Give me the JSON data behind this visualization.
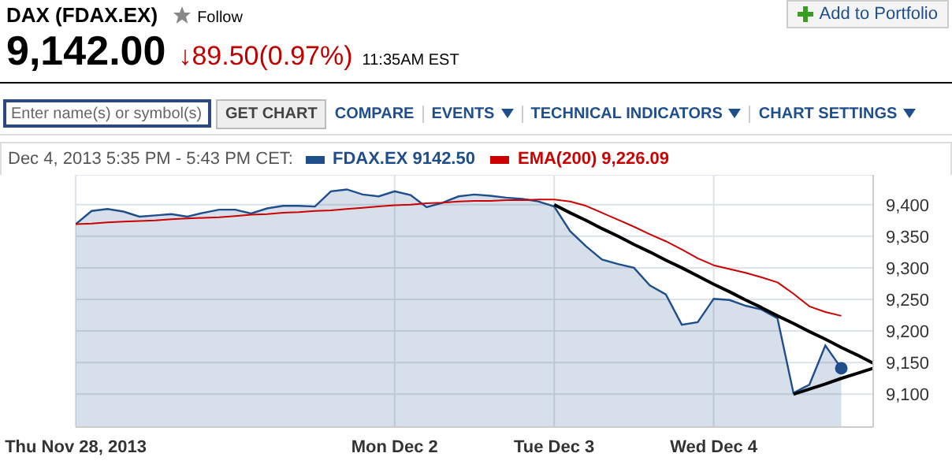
{
  "chart_data": {
    "type": "area",
    "title": "DAX (FDAX.EX)",
    "subtitle": "9,142.00",
    "annotations": [
      "Follow",
      "↓89.50(0.97%)",
      "11:35AM EST",
      "Add to Portfolio",
      "Enter name(s) or symbol(s)",
      "GET CHART",
      "COMPARE",
      "EVENTS",
      "TECHNICAL INDICATORS",
      "CHART SETTINGS"
    ],
    "legend_title": "Dec 4, 2013 5:35 PM - 5:43 PM CET:",
    "legend": "top left",
    "grid": true,
    "categories": [
      "Thu Nov 28, 2013",
      null,
      null,
      null,
      null,
      null,
      null,
      null,
      null,
      null,
      null,
      null,
      null,
      null,
      null,
      null,
      null,
      null,
      null,
      null,
      "Mon Dec 2",
      null,
      null,
      null,
      null,
      null,
      null,
      null,
      null,
      null,
      "Tue Dec 3",
      null,
      null,
      null,
      null,
      null,
      null,
      null,
      null,
      null,
      "Wed Dec 4",
      null,
      null,
      null,
      null,
      null,
      null,
      null,
      null,
      null,
      null
    ],
    "ylim": [
      9048,
      9447
    ],
    "yticks": [
      {
        "value": 9100,
        "label": "9,100"
      },
      {
        "value": 9150,
        "label": "9,150"
      },
      {
        "value": 9200,
        "label": "9,200"
      },
      {
        "value": 9250,
        "label": "9,250"
      },
      {
        "value": 9300,
        "label": "9,300"
      },
      {
        "value": 9350,
        "label": "9,350"
      },
      {
        "value": 9400,
        "label": "9,400"
      }
    ],
    "series": [
      {
        "name": "FDAX.EX 9142.50",
        "color": "#1f4e8c",
        "values": [
          9369,
          9390,
          9393,
          9389,
          9381,
          9383,
          9385,
          9381,
          9387,
          9392,
          9392,
          9386,
          9394,
          9398,
          9398,
          9397,
          9421,
          9424,
          9416,
          9413,
          9421,
          9415,
          9396,
          9403,
          9413,
          9416,
          9414,
          9411,
          9409,
          9405,
          9397,
          9358,
          9334,
          9313,
          9306,
          9300,
          9272,
          9258,
          9210,
          9214,
          9251,
          9249,
          9240,
          9234,
          9220,
          9102,
          9115,
          9177,
          9141,
          null,
          null
        ]
      },
      {
        "name": "EMA(200) 9,226.09",
        "type": "line",
        "color": "#cc0000",
        "values": [
          9369,
          9370,
          9372,
          9373,
          9374,
          9375,
          9377,
          9378,
          9379,
          9380,
          9382,
          9384,
          9385,
          9387,
          9388,
          9390,
          9391,
          9393,
          9395,
          9397,
          9399,
          9400,
          9402,
          9403,
          9405,
          9406,
          9406,
          9407,
          9407,
          9408,
          9408,
          9405,
          9398,
          9387,
          9376,
          9365,
          9353,
          9342,
          9329,
          9315,
          9304,
          9298,
          9292,
          9285,
          9277,
          9259,
          9239,
          9230,
          9224,
          null,
          null
        ]
      },
      {
        "type": "line",
        "color": "#000000",
        "values": [
          null,
          null,
          null,
          null,
          null,
          null,
          null,
          null,
          null,
          null,
          null,
          null,
          null,
          null,
          null,
          null,
          null,
          null,
          null,
          null,
          null,
          null,
          null,
          null,
          null,
          null,
          null,
          null,
          null,
          null,
          9400,
          9387,
          9375,
          9362,
          9350,
          9337,
          9325,
          9312,
          9300,
          9287,
          9274,
          9262,
          9249,
          9237,
          9224,
          9212,
          9199,
          9187,
          9174,
          9162,
          9149
        ]
      },
      {
        "type": "line",
        "color": "#000000",
        "values": [
          null,
          null,
          null,
          null,
          null,
          null,
          null,
          null,
          null,
          null,
          null,
          null,
          null,
          null,
          null,
          null,
          null,
          null,
          null,
          null,
          null,
          null,
          null,
          null,
          null,
          null,
          null,
          null,
          null,
          null,
          null,
          null,
          null,
          null,
          null,
          null,
          null,
          null,
          null,
          null,
          null,
          null,
          null,
          null,
          null,
          9100,
          9108,
          9116,
          9125,
          9133,
          9141
        ]
      },
      {
        "type": "scatter",
        "color": "#1f4e8c",
        "values": [
          null,
          null,
          null,
          null,
          null,
          null,
          null,
          null,
          null,
          null,
          null,
          null,
          null,
          null,
          null,
          null,
          null,
          null,
          null,
          null,
          null,
          null,
          null,
          null,
          null,
          null,
          null,
          null,
          null,
          null,
          null,
          null,
          null,
          null,
          null,
          null,
          null,
          null,
          null,
          null,
          null,
          null,
          null,
          null,
          null,
          null,
          null,
          null,
          9141,
          null,
          null
        ]
      }
    ]
  }
}
